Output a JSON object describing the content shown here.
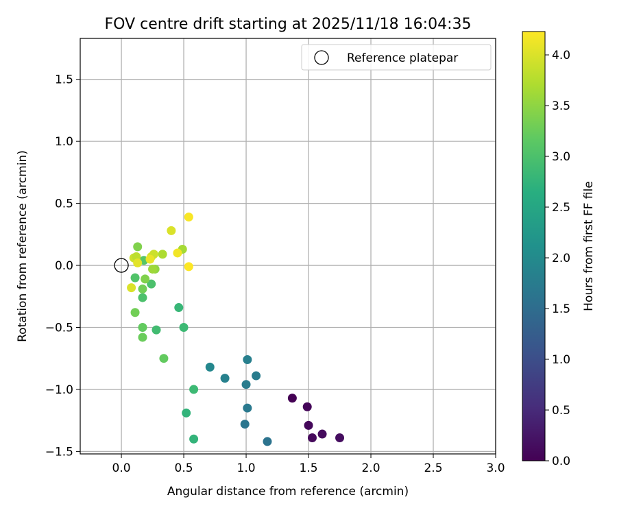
{
  "chart_data": {
    "type": "scatter",
    "title": "FOV centre drift starting at 2025/11/18 16:04:35",
    "xlabel": "Angular distance from reference (arcmin)",
    "ylabel": "Rotation from reference (arcmin)",
    "colorbar_label": "Hours from first FF file",
    "xlim": [
      -0.33,
      3.0
    ],
    "ylim": [
      -1.52,
      1.83
    ],
    "clim": [
      0.0,
      4.23
    ],
    "x_ticks": [
      0.0,
      0.5,
      1.0,
      1.5,
      2.0,
      2.5,
      3.0
    ],
    "x_tick_labels": [
      "0.0",
      "0.5",
      "1.0",
      "1.5",
      "2.0",
      "2.5",
      "3.0"
    ],
    "y_ticks": [
      -1.5,
      -1.0,
      -0.5,
      0.0,
      0.5,
      1.0,
      1.5
    ],
    "y_tick_labels": [
      "−1.5",
      "−1.0",
      "−0.5",
      "0.0",
      "0.5",
      "1.0",
      "1.5"
    ],
    "colorbar_ticks": [
      0.0,
      0.5,
      1.0,
      1.5,
      2.0,
      2.5,
      3.0,
      3.5,
      4.0
    ],
    "colorbar_tick_labels": [
      "0.0",
      "0.5",
      "1.0",
      "1.5",
      "2.0",
      "2.5",
      "3.0",
      "3.5",
      "4.0"
    ],
    "colormap": "viridis",
    "grid": true,
    "legend": {
      "position": "top-right",
      "entries": [
        "Reference platepar"
      ]
    },
    "reference_point": {
      "x": 0.0,
      "y": 0.0,
      "label": "Reference platepar"
    },
    "points": [
      {
        "x": 1.37,
        "y": -1.07,
        "hours": 0.0
      },
      {
        "x": 1.49,
        "y": -1.14,
        "hours": 0.05
      },
      {
        "x": 1.5,
        "y": -1.29,
        "hours": 0.08
      },
      {
        "x": 1.53,
        "y": -1.39,
        "hours": 0.1
      },
      {
        "x": 1.61,
        "y": -1.36,
        "hours": 0.12
      },
      {
        "x": 1.75,
        "y": -1.39,
        "hours": 0.15
      },
      {
        "x": 1.17,
        "y": -1.42,
        "hours": 1.6
      },
      {
        "x": 0.99,
        "y": -1.28,
        "hours": 1.65
      },
      {
        "x": 1.01,
        "y": -1.15,
        "hours": 1.7
      },
      {
        "x": 1.0,
        "y": -0.96,
        "hours": 1.75
      },
      {
        "x": 1.08,
        "y": -0.89,
        "hours": 1.75
      },
      {
        "x": 1.01,
        "y": -0.76,
        "hours": 1.8
      },
      {
        "x": 0.83,
        "y": -0.91,
        "hours": 1.85
      },
      {
        "x": 0.71,
        "y": -0.82,
        "hours": 1.95
      },
      {
        "x": 0.58,
        "y": -1.4,
        "hours": 2.75
      },
      {
        "x": 0.52,
        "y": -1.19,
        "hours": 2.75
      },
      {
        "x": 0.58,
        "y": -1.0,
        "hours": 2.85
      },
      {
        "x": 0.46,
        "y": -0.34,
        "hours": 2.8
      },
      {
        "x": 0.5,
        "y": -0.5,
        "hours": 2.85
      },
      {
        "x": 0.28,
        "y": -0.52,
        "hours": 2.9
      },
      {
        "x": 0.34,
        "y": -0.75,
        "hours": 3.2
      },
      {
        "x": 0.17,
        "y": -0.58,
        "hours": 3.25
      },
      {
        "x": 0.17,
        "y": -0.5,
        "hours": 3.2
      },
      {
        "x": 0.11,
        "y": -0.38,
        "hours": 3.3
      },
      {
        "x": 0.17,
        "y": -0.26,
        "hours": 3.0
      },
      {
        "x": 0.24,
        "y": -0.15,
        "hours": 3.0
      },
      {
        "x": 0.11,
        "y": -0.1,
        "hours": 3.05
      },
      {
        "x": 0.17,
        "y": -0.19,
        "hours": 3.3
      },
      {
        "x": 0.19,
        "y": -0.11,
        "hours": 3.4
      },
      {
        "x": 0.27,
        "y": -0.03,
        "hours": 3.5
      },
      {
        "x": 0.25,
        "y": -0.03,
        "hours": 3.6
      },
      {
        "x": 0.18,
        "y": 0.04,
        "hours": 3.1
      },
      {
        "x": 0.13,
        "y": 0.15,
        "hours": 3.4
      },
      {
        "x": 0.33,
        "y": 0.09,
        "hours": 3.7
      },
      {
        "x": 0.49,
        "y": 0.13,
        "hours": 3.65
      },
      {
        "x": 0.08,
        "y": -0.18,
        "hours": 4.0
      },
      {
        "x": 0.1,
        "y": 0.06,
        "hours": 3.9
      },
      {
        "x": 0.12,
        "y": 0.07,
        "hours": 3.8
      },
      {
        "x": 0.13,
        "y": 0.02,
        "hours": 4.05
      },
      {
        "x": 0.24,
        "y": 0.07,
        "hours": 3.95
      },
      {
        "x": 0.26,
        "y": 0.09,
        "hours": 3.9
      },
      {
        "x": 0.23,
        "y": 0.05,
        "hours": 4.1
      },
      {
        "x": 0.4,
        "y": 0.28,
        "hours": 4.0
      },
      {
        "x": 0.45,
        "y": 0.1,
        "hours": 4.15
      },
      {
        "x": 0.54,
        "y": 0.39,
        "hours": 4.2
      },
      {
        "x": 0.54,
        "y": -0.01,
        "hours": 4.23
      }
    ]
  }
}
